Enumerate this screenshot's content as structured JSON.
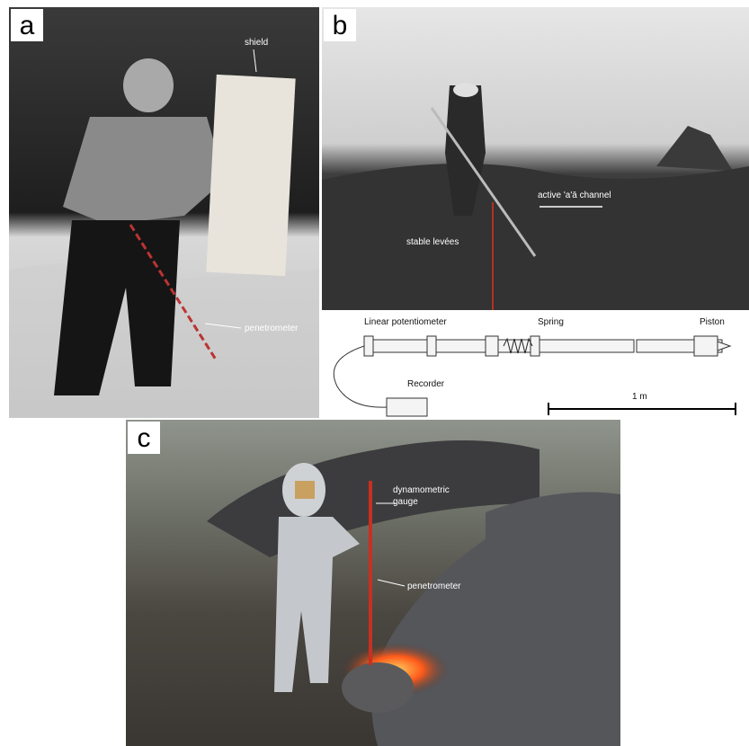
{
  "panels": [
    {
      "label": "a",
      "annotations": [
        "shield",
        "penetrometer"
      ]
    },
    {
      "label": "b",
      "annotations": [
        "active 'a'ā channel",
        "stable levées"
      ],
      "diagram": {
        "parts": [
          "Linear potentiometer",
          "Spring",
          "Piston",
          "Recorder"
        ],
        "scale": "1 m"
      }
    },
    {
      "label": "c",
      "annotations": [
        {
          "lines": [
            "dynamometric",
            "gauge"
          ]
        },
        "penetrometer"
      ]
    }
  ]
}
